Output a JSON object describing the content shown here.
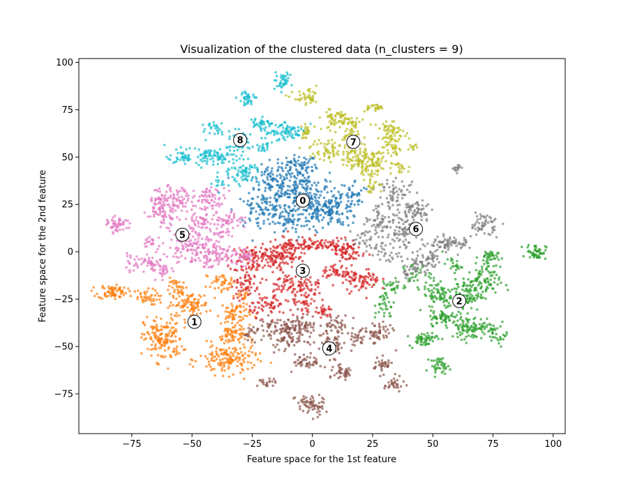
{
  "chart_data": {
    "type": "scatter",
    "title": "Visualization of the clustered data (n_clusters = 9)",
    "xlabel": "Feature space for the 1st feature",
    "ylabel": "Feature space for the 2nd feature",
    "xlim": [
      -97,
      105
    ],
    "ylim": [
      -96,
      102
    ],
    "xticks": [
      -75,
      -50,
      -25,
      0,
      25,
      50,
      75,
      100
    ],
    "yticks": [
      -75,
      -50,
      -25,
      0,
      25,
      50,
      75,
      100
    ],
    "grid": false,
    "legend": "none",
    "clusters": [
      {
        "label": "0",
        "color": "#1f77b4",
        "center": [
          -4,
          27
        ],
        "blobs": [
          [
            -6,
            45,
            4,
            3,
            70
          ],
          [
            -14,
            31,
            6,
            7,
            140
          ],
          [
            -3,
            33,
            5,
            5,
            110
          ],
          [
            2,
            22,
            5,
            4,
            90
          ],
          [
            11,
            23,
            4,
            5,
            90
          ],
          [
            -22,
            22,
            5,
            4,
            60
          ],
          [
            -10,
            15,
            6,
            4,
            60
          ],
          [
            -18,
            40,
            3,
            3,
            30
          ],
          [
            18,
            30,
            3,
            4,
            30
          ]
        ]
      },
      {
        "label": "1",
        "color": "#ff7f0e",
        "center": [
          -49,
          -37
        ],
        "blobs": [
          [
            -83,
            -21,
            3,
            2,
            70
          ],
          [
            -70,
            -24,
            3,
            2,
            40
          ],
          [
            -62,
            -46,
            4,
            6,
            160
          ],
          [
            -51,
            -28,
            4,
            3,
            90
          ],
          [
            -55,
            -20,
            3,
            3,
            40
          ],
          [
            -40,
            -15,
            2,
            2,
            20
          ],
          [
            -36,
            -17,
            2,
            2,
            20
          ],
          [
            -32,
            -33,
            3,
            4,
            70
          ],
          [
            -33,
            -44,
            3,
            3,
            60
          ],
          [
            -35,
            -57,
            6,
            4,
            150
          ],
          [
            -28,
            -22,
            2,
            2,
            15
          ]
        ]
      },
      {
        "label": "2",
        "color": "#2ca02c",
        "center": [
          61,
          -26
        ],
        "blobs": [
          [
            93,
            0,
            2,
            2,
            50
          ],
          [
            73,
            -3,
            2,
            2,
            40
          ],
          [
            70,
            -16,
            4,
            4,
            90
          ],
          [
            63,
            -23,
            4,
            4,
            90
          ],
          [
            52,
            -22,
            3,
            4,
            60
          ],
          [
            55,
            -35,
            3,
            2,
            60
          ],
          [
            67,
            -40,
            5,
            3,
            110
          ],
          [
            46,
            -46,
            3,
            2,
            55
          ],
          [
            53,
            -60,
            2,
            2,
            40
          ],
          [
            30,
            -28,
            2,
            4,
            35
          ],
          [
            33,
            -18,
            3,
            2,
            25
          ],
          [
            43,
            -12,
            3,
            3,
            30
          ],
          [
            58,
            -7,
            2,
            2,
            20
          ],
          [
            78,
            -45,
            2,
            2,
            20
          ]
        ]
      },
      {
        "label": "3",
        "color": "#d62728",
        "center": [
          -4,
          -10
        ],
        "blobs": [
          [
            -25,
            -4,
            5,
            4,
            90
          ],
          [
            -12,
            0,
            5,
            3,
            80
          ],
          [
            -2,
            4,
            5,
            2,
            70
          ],
          [
            11,
            3,
            4,
            2,
            60
          ],
          [
            16,
            -1,
            3,
            2,
            40
          ],
          [
            -28,
            -16,
            3,
            5,
            60
          ],
          [
            -12,
            -17,
            3,
            3,
            50
          ],
          [
            -2,
            -18,
            3,
            3,
            40
          ],
          [
            10,
            -11,
            3,
            2,
            40
          ],
          [
            20,
            -15,
            4,
            3,
            80
          ],
          [
            -18,
            -28,
            4,
            3,
            60
          ],
          [
            -3,
            -28,
            3,
            3,
            40
          ],
          [
            5,
            -32,
            2,
            2,
            25
          ],
          [
            -15,
            -5,
            3,
            3,
            40
          ]
        ]
      },
      {
        "label": "4",
        "color": "#8c564b",
        "center": [
          7,
          -51
        ],
        "blobs": [
          [
            -13,
            -40,
            5,
            3,
            70
          ],
          [
            -4,
            -38,
            4,
            3,
            50
          ],
          [
            -10,
            -46,
            4,
            3,
            60
          ],
          [
            10,
            -39,
            3,
            3,
            40
          ],
          [
            8,
            -50,
            3,
            3,
            60
          ],
          [
            27,
            -43,
            3,
            3,
            55
          ],
          [
            18,
            -46,
            2,
            2,
            25
          ],
          [
            -2,
            -58,
            3,
            2,
            45
          ],
          [
            13,
            -64,
            2,
            2,
            40
          ],
          [
            29,
            -60,
            2,
            2,
            35
          ],
          [
            34,
            -70,
            2,
            2,
            30
          ],
          [
            -1,
            -81,
            3,
            3,
            65
          ],
          [
            -19,
            -69,
            2,
            1,
            20
          ],
          [
            -25,
            -43,
            2,
            2,
            20
          ]
        ]
      },
      {
        "label": "5",
        "color": "#e377c2",
        "center": [
          -54,
          9
        ],
        "blobs": [
          [
            -81,
            14,
            2,
            2,
            50
          ],
          [
            -62,
            24,
            3,
            5,
            110
          ],
          [
            -54,
            28,
            3,
            3,
            50
          ],
          [
            -42,
            28,
            3,
            3,
            60
          ],
          [
            -46,
            17,
            3,
            3,
            50
          ],
          [
            -34,
            17,
            3,
            3,
            40
          ],
          [
            -50,
            3,
            5,
            5,
            130
          ],
          [
            -40,
            -2,
            4,
            3,
            60
          ],
          [
            -30,
            -3,
            3,
            2,
            40
          ],
          [
            -67,
            -7,
            3,
            2,
            40
          ],
          [
            -75,
            -6,
            2,
            2,
            20
          ],
          [
            -67,
            5,
            2,
            2,
            20
          ],
          [
            -38,
            9,
            2,
            2,
            20
          ],
          [
            -62,
            -10,
            2,
            2,
            20
          ]
        ]
      },
      {
        "label": "6",
        "color": "#7f7f7f",
        "center": [
          43,
          12
        ],
        "blobs": [
          [
            35,
            30,
            4,
            4,
            60
          ],
          [
            43,
            22,
            4,
            3,
            60
          ],
          [
            37,
            12,
            5,
            5,
            100
          ],
          [
            28,
            17,
            3,
            3,
            40
          ],
          [
            22,
            6,
            3,
            3,
            30
          ],
          [
            55,
            4,
            3,
            2,
            50
          ],
          [
            62,
            4,
            2,
            2,
            25
          ],
          [
            71,
            15,
            3,
            3,
            55
          ],
          [
            60,
            44,
            1,
            1,
            15
          ],
          [
            45,
            -6,
            3,
            3,
            45
          ],
          [
            40,
            -12,
            2,
            2,
            20
          ],
          [
            30,
            -1,
            3,
            2,
            25
          ],
          [
            50,
            -4,
            2,
            2,
            20
          ]
        ]
      },
      {
        "label": "7",
        "color": "#bcbd22",
        "center": [
          17,
          58
        ],
        "blobs": [
          [
            -2,
            81,
            3,
            2,
            40
          ],
          [
            10,
            70,
            3,
            3,
            60
          ],
          [
            17,
            67,
            2,
            2,
            25
          ],
          [
            25,
            76,
            2,
            1,
            25
          ],
          [
            33,
            64,
            3,
            2,
            50
          ],
          [
            -2,
            63,
            2,
            2,
            25
          ],
          [
            7,
            54,
            4,
            3,
            60
          ],
          [
            20,
            50,
            4,
            4,
            80
          ],
          [
            25,
            45,
            3,
            3,
            60
          ],
          [
            33,
            55,
            3,
            3,
            40
          ],
          [
            25,
            35,
            2,
            2,
            20
          ],
          [
            15,
            62,
            2,
            2,
            20
          ],
          [
            43,
            55,
            1,
            1,
            10
          ],
          [
            36,
            45,
            2,
            2,
            20
          ]
        ]
      },
      {
        "label": "8",
        "color": "#17becf",
        "center": [
          -30,
          59
        ],
        "blobs": [
          [
            -13,
            90,
            2,
            2,
            40
          ],
          [
            -27,
            81,
            2,
            2,
            35
          ],
          [
            -40,
            66,
            2,
            2,
            25
          ],
          [
            -22,
            68,
            2,
            2,
            35
          ],
          [
            -14,
            64,
            4,
            3,
            60
          ],
          [
            -8,
            63,
            2,
            2,
            20
          ],
          [
            -30,
            58,
            3,
            3,
            40
          ],
          [
            -38,
            50,
            4,
            3,
            70
          ],
          [
            -52,
            50,
            4,
            2,
            60
          ],
          [
            -28,
            42,
            3,
            3,
            60
          ],
          [
            -38,
            36,
            2,
            2,
            15
          ],
          [
            -20,
            55,
            2,
            2,
            20
          ]
        ]
      }
    ]
  }
}
